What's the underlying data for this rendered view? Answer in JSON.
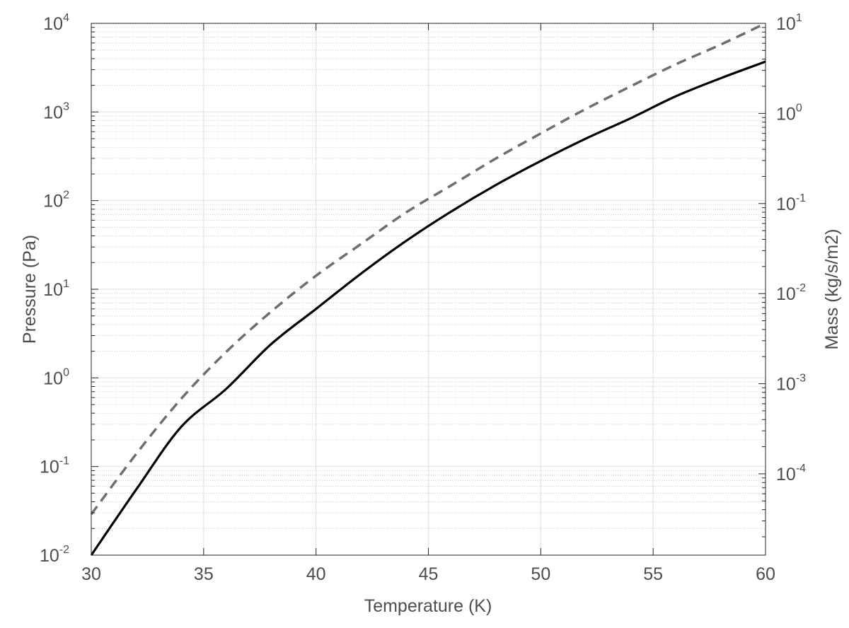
{
  "chart_data": {
    "type": "line",
    "xlabel": "Temperature (K)",
    "ylabel": "Pressure (Pa)",
    "y2label": "Mass (kg/s/m2)",
    "xlim": [
      30,
      60
    ],
    "ylim": [
      0.01,
      10000
    ],
    "y2lim": [
      1.25e-05,
      10
    ],
    "yscale": "log",
    "y2scale": "log",
    "grid": true,
    "x_ticks": [
      "30",
      "35",
      "40",
      "45",
      "50",
      "55",
      "60"
    ],
    "y_ticks": [
      {
        "base": "10",
        "exp": "-2"
      },
      {
        "base": "10",
        "exp": "-1"
      },
      {
        "base": "10",
        "exp": "0"
      },
      {
        "base": "10",
        "exp": "1"
      },
      {
        "base": "10",
        "exp": "2"
      },
      {
        "base": "10",
        "exp": "3"
      },
      {
        "base": "10",
        "exp": "4"
      }
    ],
    "y2_ticks": [
      {
        "base": "10",
        "exp": "-4"
      },
      {
        "base": "10",
        "exp": "-3"
      },
      {
        "base": "10",
        "exp": "-2"
      },
      {
        "base": "10",
        "exp": "-1"
      },
      {
        "base": "10",
        "exp": "0"
      },
      {
        "base": "10",
        "exp": "1"
      }
    ],
    "series": [
      {
        "axis": "left",
        "style": "solid",
        "color": "#000000",
        "x": [
          30,
          32,
          34,
          36,
          38,
          40,
          42,
          44,
          46,
          48,
          50,
          52,
          54,
          56,
          58,
          60
        ],
        "y": [
          0.01,
          0.055,
          0.28,
          0.75,
          2.4,
          6.0,
          15,
          35,
          75,
          150,
          280,
          500,
          850,
          1500,
          2400,
          3700
        ]
      },
      {
        "axis": "right",
        "style": "dashed",
        "color": "#6e6e6e",
        "x": [
          30,
          32,
          34,
          36,
          38,
          40,
          42,
          44,
          46,
          48,
          50,
          52,
          54,
          56,
          58,
          60
        ],
        "y": [
          3.55e-05,
          0.000166,
          0.00068,
          0.00225,
          0.0063,
          0.0158,
          0.0355,
          0.0794,
          0.158,
          0.316,
          0.6,
          1.12,
          2.0,
          3.5,
          5.8,
          10
        ]
      }
    ]
  }
}
